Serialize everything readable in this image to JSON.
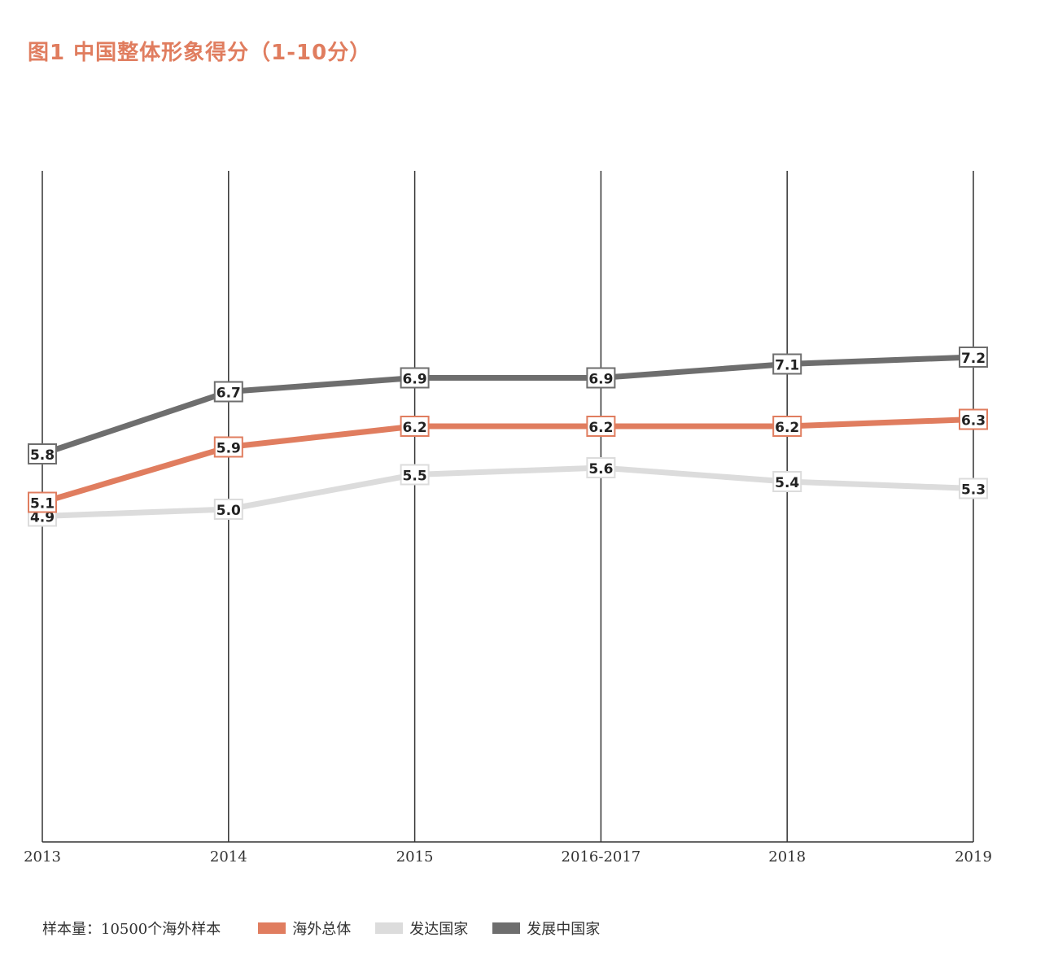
{
  "title": "图1 中国整体形象得分（1-10分）",
  "sample_note": "样本量：10500个海外样本",
  "colors": {
    "title": "#e07d5f",
    "overseas_total": "#e07d5f",
    "developed": "#dcdcdc",
    "developing": "#6e6e6e",
    "gridline": "#333333"
  },
  "legend": [
    {
      "label": "海外总体",
      "color": "#e07d5f"
    },
    {
      "label": "发达国家",
      "color": "#dcdcdc"
    },
    {
      "label": "发展中国家",
      "color": "#6e6e6e"
    }
  ],
  "chart_data": {
    "type": "line",
    "title": "图1 中国整体形象得分（1-10分）",
    "categories": [
      "2013",
      "2014",
      "2015",
      "2016-2017",
      "2018",
      "2019"
    ],
    "ylim": [
      0,
      10
    ],
    "grid": "vertical lines at each category",
    "legend_position": "bottom",
    "series": [
      {
        "name": "发展中国家",
        "color": "#6e6e6e",
        "values": [
          5.8,
          6.7,
          6.9,
          6.9,
          7.1,
          7.2
        ]
      },
      {
        "name": "海外总体",
        "color": "#e07d5f",
        "values": [
          5.1,
          5.9,
          6.2,
          6.2,
          6.2,
          6.3
        ]
      },
      {
        "name": "发达国家",
        "color": "#dcdcdc",
        "values": [
          4.9,
          5.0,
          5.5,
          5.6,
          5.4,
          5.3
        ]
      }
    ]
  }
}
